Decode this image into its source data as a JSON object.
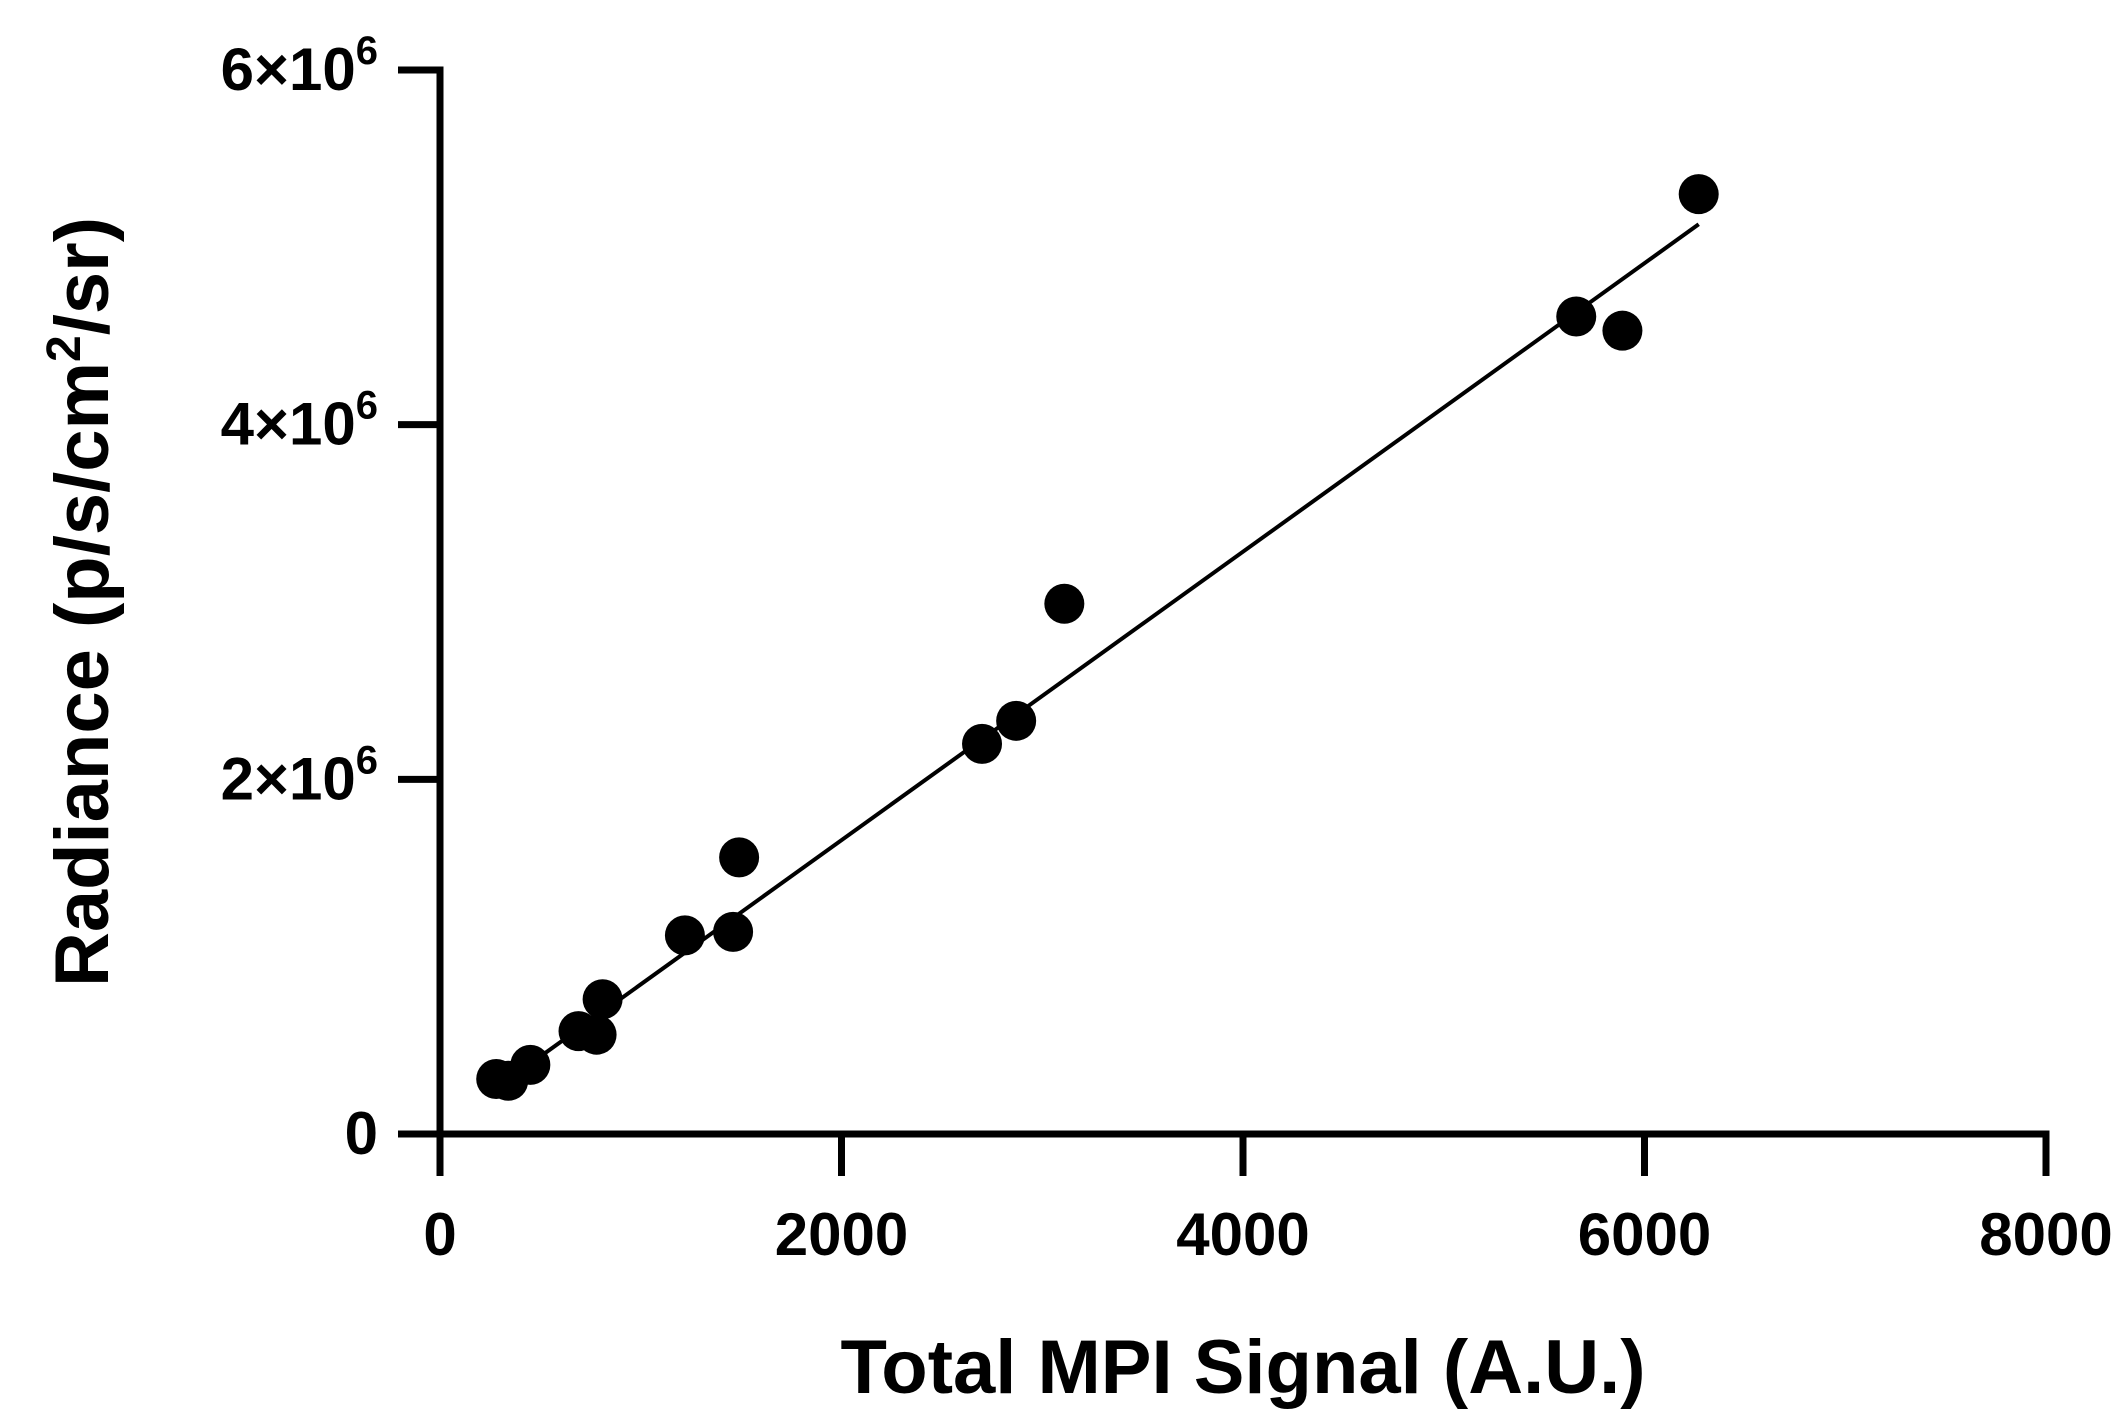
{
  "chart_data": {
    "type": "scatter",
    "title": "",
    "xlabel": "Total MPI Signal (A.U.)",
    "ylabel_parts": {
      "before": "Radiance (p/s/cm",
      "sup": "2",
      "after": "/sr)"
    },
    "xlim": [
      0,
      8000
    ],
    "ylim": [
      0,
      6000000
    ],
    "x_ticks": [
      {
        "value": 0,
        "label": "0"
      },
      {
        "value": 2000,
        "label": "2000"
      },
      {
        "value": 4000,
        "label": "4000"
      },
      {
        "value": 6000,
        "label": "6000"
      },
      {
        "value": 8000,
        "label": "8000"
      }
    ],
    "y_ticks": [
      {
        "value": 0,
        "base": "0",
        "exp": ""
      },
      {
        "value": 2000000,
        "base": "2×10",
        "exp": "6"
      },
      {
        "value": 4000000,
        "base": "4×10",
        "exp": "6"
      },
      {
        "value": 6000000,
        "base": "6×10",
        "exp": "6"
      }
    ],
    "series": [
      {
        "points": [
          {
            "x": 280,
            "y": 310000
          },
          {
            "x": 340,
            "y": 300000
          },
          {
            "x": 450,
            "y": 390000
          },
          {
            "x": 690,
            "y": 580000
          },
          {
            "x": 780,
            "y": 560000
          },
          {
            "x": 810,
            "y": 760000
          },
          {
            "x": 1220,
            "y": 1120000
          },
          {
            "x": 1460,
            "y": 1140000
          },
          {
            "x": 1490,
            "y": 1560000
          },
          {
            "x": 2700,
            "y": 2200000
          },
          {
            "x": 2870,
            "y": 2330000
          },
          {
            "x": 3110,
            "y": 2990000
          },
          {
            "x": 5660,
            "y": 4610000
          },
          {
            "x": 5890,
            "y": 4530000
          },
          {
            "x": 6270,
            "y": 5300000
          }
        ]
      }
    ],
    "fit_line": {
      "x": [
        270,
        6270
      ],
      "y": [
        250000,
        5130000
      ]
    },
    "grid": false,
    "colors": {
      "marker": "#000000",
      "line": "#000000",
      "axis": "#000000"
    }
  }
}
